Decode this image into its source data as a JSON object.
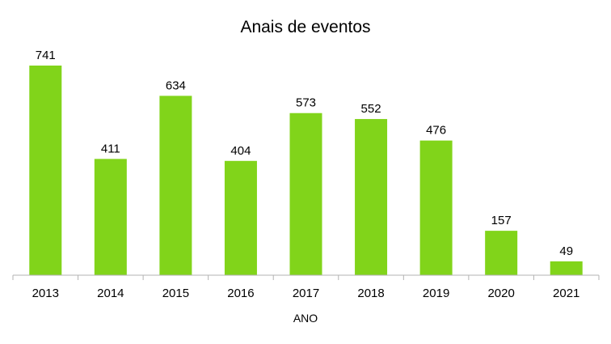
{
  "chart_data": {
    "type": "bar",
    "title": "Anais de eventos",
    "xlabel": "ANO",
    "ylabel": "",
    "categories": [
      "2013",
      "2014",
      "2015",
      "2016",
      "2017",
      "2018",
      "2019",
      "2020",
      "2021"
    ],
    "values": [
      741,
      411,
      634,
      404,
      573,
      552,
      476,
      157,
      49
    ],
    "data_labels": [
      "741",
      "411",
      "634",
      "404",
      "573",
      "552",
      "476",
      "157",
      "49"
    ],
    "ylim": [
      0,
      741
    ],
    "grid": false,
    "legend": "none",
    "bar_color": "#81d41a",
    "axis_color": "#b3b3b3"
  }
}
